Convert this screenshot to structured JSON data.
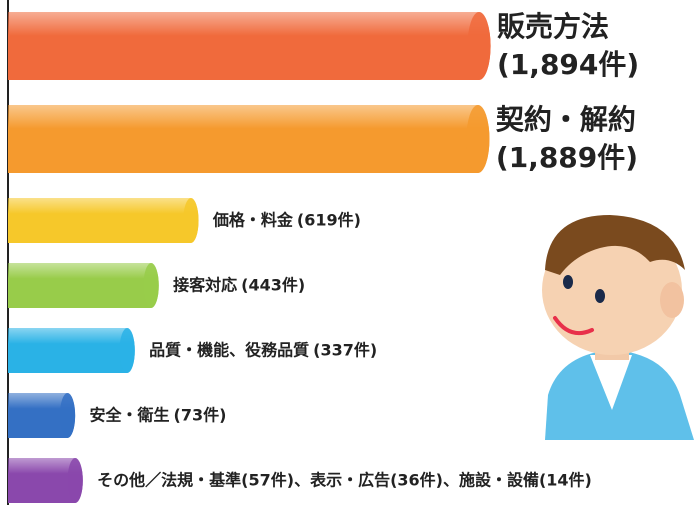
{
  "chart_data": {
    "type": "bar",
    "orientation": "horizontal",
    "categories": [
      "販売方法",
      "契約・解約",
      "価格・料金",
      "接客対応",
      "品質・機能、役務品質",
      "安全・衛生",
      "その他／法規・基準(57件)、表示・広告(36件)、施設・設備(14件)"
    ],
    "values": [
      1894,
      1889,
      619,
      443,
      337,
      73,
      107
    ],
    "value_labels": [
      "(1,894件)",
      "(1,889件)",
      "(619件)",
      "(443件)",
      "(337件)",
      "(73件)",
      null
    ],
    "colors": [
      "#f06a3c",
      "#f59a2e",
      "#f6c82a",
      "#98cc4a",
      "#2ab2e6",
      "#3470c4",
      "#8a48ac"
    ]
  }
}
